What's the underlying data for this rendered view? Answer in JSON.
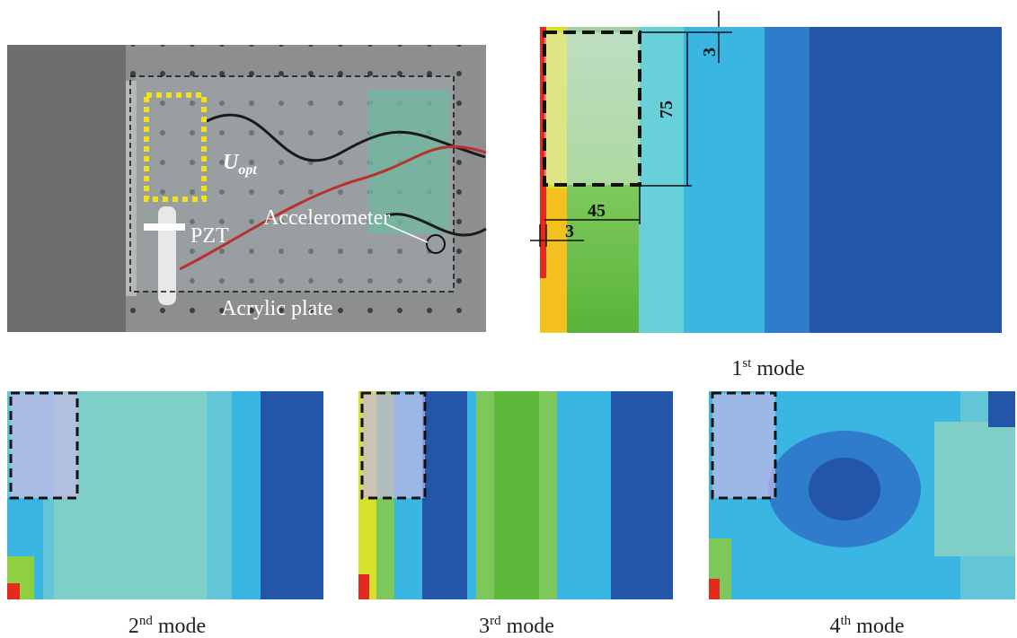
{
  "photo": {
    "labels": {
      "u": "U",
      "opt": "opt",
      "pzt": "PZT",
      "accelerometer": "Accelerometer",
      "plate": "Acrylic plate"
    }
  },
  "mode1": {
    "dimensions": {
      "top_gap": "3",
      "height": "75",
      "width": "45",
      "left_gap": "3"
    }
  },
  "captions": [
    {
      "ordinal": "1",
      "suffix": "st",
      "word": "mode"
    },
    {
      "ordinal": "2",
      "suffix": "nd",
      "word": "mode"
    },
    {
      "ordinal": "3",
      "suffix": "rd",
      "word": "mode"
    },
    {
      "ordinal": "4",
      "suffix": "th",
      "word": "mode"
    }
  ]
}
